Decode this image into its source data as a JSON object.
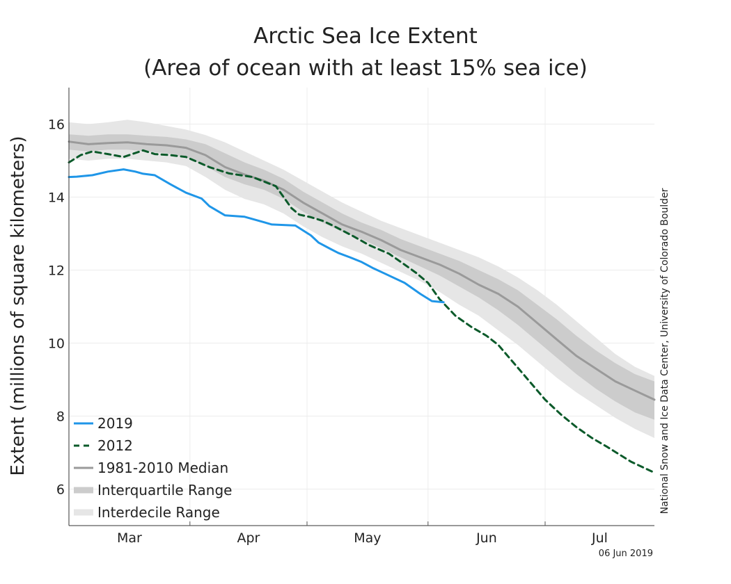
{
  "chart_data": {
    "type": "line",
    "title": "Arctic Sea Ice Extent",
    "subtitle": "(Area of ocean with at least 15% sea ice)",
    "xlabel": "",
    "ylabel": "Extent (millions of square kilometers)",
    "ylim": [
      5,
      17
    ],
    "xlim": [
      0,
      150
    ],
    "yticks": [
      6,
      8,
      10,
      12,
      14,
      16
    ],
    "month_ticks": [
      {
        "label": "Mar",
        "start": 0,
        "end": 31
      },
      {
        "label": "Apr",
        "start": 31,
        "end": 61
      },
      {
        "label": "May",
        "start": 61,
        "end": 92
      },
      {
        "label": "Jun",
        "start": 92,
        "end": 122
      },
      {
        "label": "Jul",
        "start": 122,
        "end": 150
      }
    ],
    "grid": true,
    "legend_position": "bottom-left",
    "credit": "National Snow and Ice Data Center, University of Colorado Boulder",
    "date_stamp": "06 Jun 2019",
    "colors": {
      "2019": "#1f96e8",
      "2012": "#0b5a2a",
      "median": "#9a9a9a",
      "interquartile": "#cccccc",
      "interdecile": "#e6e6e6"
    },
    "series": [
      {
        "name": "2019",
        "x": [
          0,
          2,
          6,
          10,
          14,
          17,
          19,
          22,
          26,
          30,
          33,
          34,
          36,
          40,
          45,
          52,
          58,
          62,
          64,
          67,
          69,
          72,
          75,
          78,
          81,
          86,
          90,
          93,
          96
        ],
        "values": [
          14.55,
          14.56,
          14.6,
          14.7,
          14.76,
          14.7,
          14.64,
          14.6,
          14.35,
          14.12,
          14.0,
          13.96,
          13.75,
          13.5,
          13.46,
          13.25,
          13.22,
          12.95,
          12.75,
          12.58,
          12.47,
          12.35,
          12.22,
          12.05,
          11.9,
          11.65,
          11.35,
          11.15,
          11.12
        ]
      },
      {
        "name": "2012",
        "x": [
          0,
          3,
          6,
          10,
          14,
          19,
          22,
          26,
          30,
          36,
          41,
          47,
          53,
          55,
          57,
          59,
          62,
          65,
          68,
          73,
          77,
          82,
          86,
          89,
          92,
          95,
          99,
          103,
          107,
          110,
          114,
          118,
          122,
          126,
          130,
          134,
          138,
          141,
          144,
          147,
          150
        ],
        "values": [
          14.95,
          15.15,
          15.25,
          15.18,
          15.1,
          15.28,
          15.18,
          15.15,
          15.1,
          14.82,
          14.65,
          14.55,
          14.3,
          14.0,
          13.7,
          13.52,
          13.45,
          13.35,
          13.2,
          12.92,
          12.68,
          12.45,
          12.15,
          11.92,
          11.65,
          11.2,
          10.75,
          10.45,
          10.2,
          9.95,
          9.45,
          8.95,
          8.45,
          8.05,
          7.7,
          7.4,
          7.15,
          6.95,
          6.75,
          6.6,
          6.45
        ]
      },
      {
        "name": "1981-2010 Median",
        "x": [
          0,
          5,
          10,
          15,
          20,
          25,
          30,
          35,
          40,
          45,
          50,
          55,
          60,
          65,
          70,
          75,
          80,
          85,
          90,
          95,
          100,
          105,
          110,
          115,
          120,
          125,
          130,
          135,
          140,
          145,
          150
        ],
        "values": [
          15.52,
          15.45,
          15.48,
          15.5,
          15.45,
          15.42,
          15.35,
          15.15,
          14.82,
          14.62,
          14.45,
          14.2,
          13.85,
          13.55,
          13.25,
          13.05,
          12.82,
          12.55,
          12.35,
          12.15,
          11.9,
          11.6,
          11.35,
          11.0,
          10.55,
          10.1,
          9.65,
          9.3,
          8.95,
          8.7,
          8.45
        ]
      }
    ],
    "bands": [
      {
        "name": "Interquartile Range",
        "x": [
          0,
          5,
          10,
          15,
          20,
          25,
          30,
          35,
          40,
          45,
          50,
          55,
          60,
          65,
          70,
          75,
          80,
          85,
          90,
          95,
          100,
          105,
          110,
          115,
          120,
          125,
          130,
          135,
          140,
          145,
          150
        ],
        "low": [
          15.3,
          15.25,
          15.3,
          15.3,
          15.25,
          15.2,
          15.1,
          14.85,
          14.55,
          14.35,
          14.2,
          13.95,
          13.6,
          13.3,
          13.05,
          12.85,
          12.6,
          12.35,
          12.1,
          11.85,
          11.55,
          11.25,
          10.9,
          10.5,
          10.05,
          9.6,
          9.15,
          8.75,
          8.4,
          8.1,
          7.9
        ],
        "high": [
          15.72,
          15.68,
          15.72,
          15.72,
          15.68,
          15.65,
          15.58,
          15.45,
          15.2,
          14.95,
          14.75,
          14.5,
          14.15,
          13.85,
          13.55,
          13.3,
          13.1,
          12.85,
          12.65,
          12.45,
          12.25,
          12.0,
          11.75,
          11.45,
          11.05,
          10.65,
          10.2,
          9.8,
          9.45,
          9.15,
          8.95
        ]
      },
      {
        "name": "Interdecile Range",
        "x": [
          0,
          5,
          10,
          15,
          20,
          25,
          30,
          35,
          40,
          45,
          50,
          55,
          60,
          65,
          70,
          75,
          80,
          85,
          90,
          95,
          100,
          105,
          110,
          115,
          120,
          125,
          130,
          135,
          140,
          145,
          150
        ],
        "low": [
          15.05,
          15.0,
          15.05,
          15.05,
          15.0,
          14.95,
          14.85,
          14.55,
          14.2,
          13.95,
          13.8,
          13.55,
          13.2,
          12.9,
          12.65,
          12.45,
          12.2,
          11.95,
          11.7,
          11.4,
          11.05,
          10.75,
          10.35,
          9.95,
          9.5,
          9.05,
          8.65,
          8.3,
          7.95,
          7.65,
          7.4
        ],
        "high": [
          16.05,
          16.0,
          16.05,
          16.12,
          16.05,
          15.95,
          15.85,
          15.7,
          15.5,
          15.25,
          15.0,
          14.75,
          14.45,
          14.15,
          13.85,
          13.6,
          13.35,
          13.15,
          12.95,
          12.75,
          12.55,
          12.35,
          12.1,
          11.8,
          11.45,
          11.05,
          10.6,
          10.15,
          9.7,
          9.35,
          9.1
        ]
      }
    ],
    "legend": [
      "2019",
      "2012",
      "1981-2010 Median",
      "Interquartile Range",
      "Interdecile Range"
    ]
  }
}
